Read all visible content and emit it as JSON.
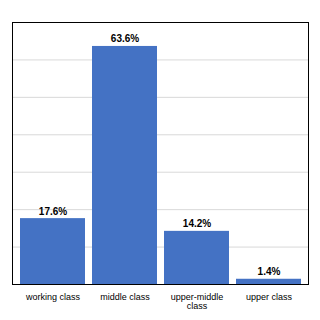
{
  "chart_data": {
    "type": "bar",
    "categories": [
      "working class",
      "middle class",
      "upper-middle\nclass",
      "upper class"
    ],
    "values": [
      17.6,
      63.6,
      14.2,
      1.4
    ],
    "value_labels": [
      "17.6%",
      "63.6%",
      "14.2%",
      "1.4%"
    ],
    "data_labels": true,
    "color": "#4472C4",
    "ylim": [
      0,
      70
    ],
    "yticks": [
      10,
      20,
      30,
      40,
      50,
      60,
      70
    ],
    "grid": true,
    "tick_labels": "x"
  }
}
